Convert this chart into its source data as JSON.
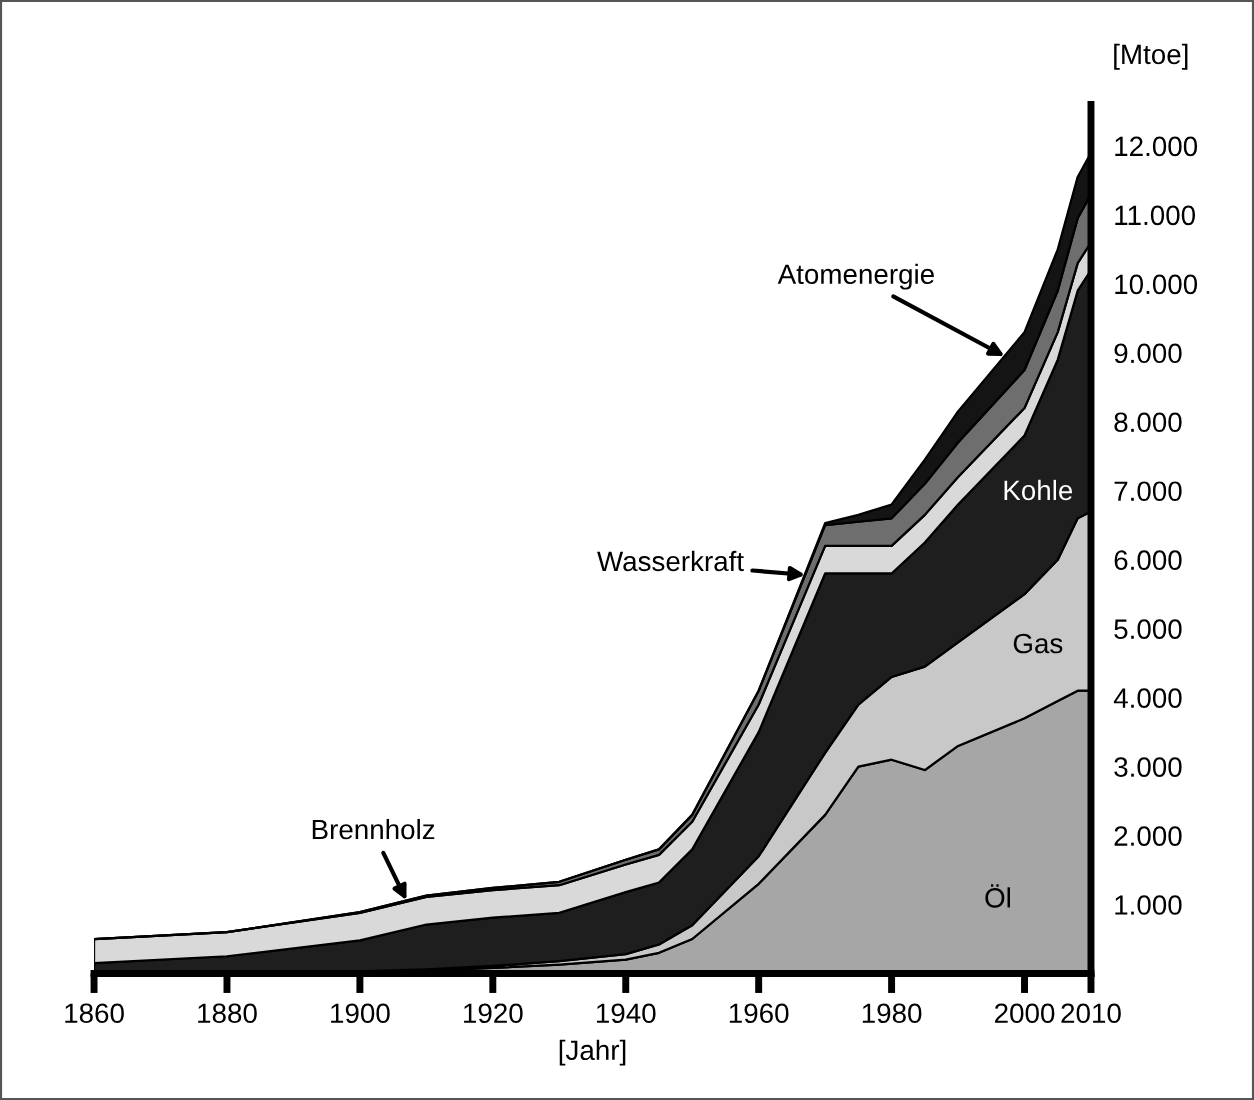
{
  "chart_data": {
    "type": "area",
    "stacked": true,
    "xlabel": "[Jahr]",
    "ylabel": "[Mtoe]",
    "x": [
      1860,
      1880,
      1900,
      1910,
      1920,
      1930,
      1940,
      1945,
      1950,
      1960,
      1970,
      1975,
      1980,
      1985,
      1990,
      2000,
      2005,
      2008,
      2010
    ],
    "series": [
      {
        "name": "Öl",
        "color": "#a6a6a6",
        "values": [
          0,
          0,
          20,
          40,
          80,
          130,
          200,
          300,
          500,
          1300,
          2300,
          3000,
          3100,
          2950,
          3300,
          3700,
          3950,
          4100,
          4100
        ]
      },
      {
        "name": "Gas",
        "color": "#c8c8c8",
        "values": [
          0,
          0,
          10,
          20,
          30,
          50,
          80,
          120,
          200,
          400,
          900,
          900,
          1200,
          1500,
          1500,
          1800,
          2050,
          2500,
          2600
        ]
      },
      {
        "name": "Kohle",
        "color": "#1e1e1e",
        "values": [
          150,
          250,
          450,
          650,
          700,
          700,
          900,
          900,
          1100,
          1800,
          2600,
          1900,
          1500,
          1800,
          2000,
          2300,
          2900,
          3300,
          3500
        ]
      },
      {
        "color": "#d9d9d9",
        "values": [
          350,
          350,
          400,
          400,
          400,
          400,
          400,
          400,
          400,
          400,
          400,
          400,
          400,
          400,
          400,
          400,
          400,
          400,
          400
        ]
      },
      {
        "color": "#6e6e6e",
        "values": [
          0,
          0,
          10,
          20,
          30,
          50,
          70,
          80,
          100,
          200,
          300,
          350,
          400,
          450,
          500,
          550,
          600,
          650,
          700
        ]
      },
      {
        "color": "#141414",
        "values": [
          0,
          0,
          0,
          0,
          0,
          0,
          0,
          0,
          0,
          0,
          30,
          100,
          200,
          350,
          450,
          550,
          600,
          600,
          600
        ]
      }
    ],
    "annotations": [
      {
        "text": "Brennholz",
        "x": 1907,
        "y": 1060
      },
      {
        "text": "Wasserkraft",
        "x": 1967,
        "y": 5780
      },
      {
        "text": "Atomenergie",
        "x": 1997,
        "y": 8950
      }
    ],
    "xlim": [
      1860,
      2010
    ],
    "ylim": [
      0,
      12600
    ],
    "xticks": [
      1860,
      1880,
      1900,
      1920,
      1940,
      1960,
      1980,
      2000,
      2010
    ],
    "yticks": [
      {
        "value": 1000,
        "label": "1.000"
      },
      {
        "value": 2000,
        "label": "2.000"
      },
      {
        "value": 3000,
        "label": "3.000"
      },
      {
        "value": 4000,
        "label": "4.000"
      },
      {
        "value": 5000,
        "label": "5.000"
      },
      {
        "value": 6000,
        "label": "6.000"
      },
      {
        "value": 7000,
        "label": "7.000"
      },
      {
        "value": 8000,
        "label": "8.000"
      },
      {
        "value": 9000,
        "label": "9.000"
      },
      {
        "value": 10000,
        "label": "10.000"
      },
      {
        "value": 11000,
        "label": "11.000"
      },
      {
        "value": 12000,
        "label": "12.000"
      }
    ],
    "grid": false,
    "legend": false
  }
}
